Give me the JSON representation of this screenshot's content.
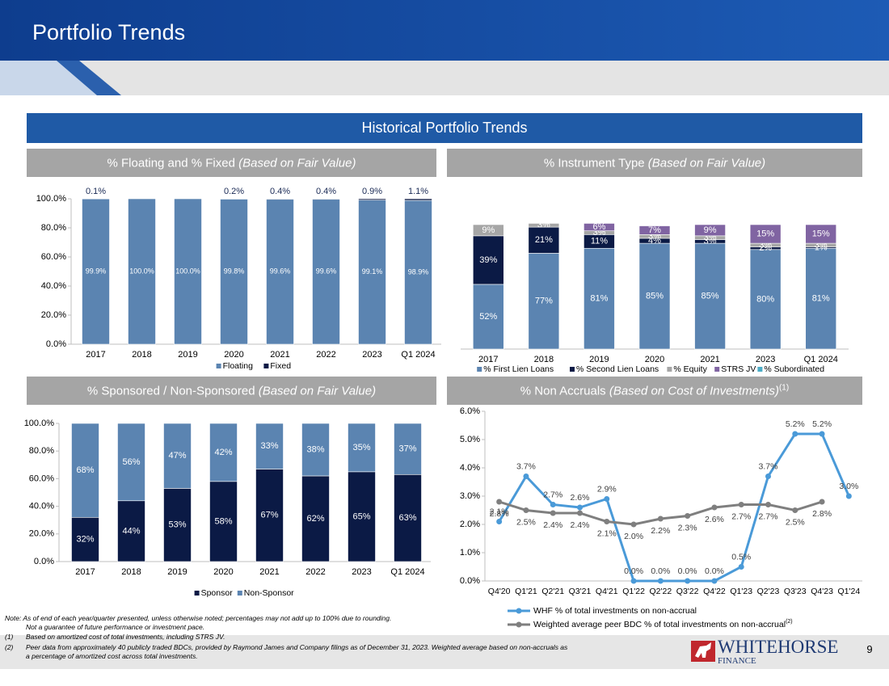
{
  "header": {
    "title": "Portfolio Trends",
    "banner": "Historical Portfolio Trends"
  },
  "chart_data": [
    {
      "type": "bar",
      "stacked": true,
      "title": "% Floating and % Fixed ",
      "title_note": "(Based on Fair Value)",
      "categories": [
        "2017",
        "2018",
        "2019",
        "2020",
        "2021",
        "2022",
        "2023",
        "Q1 2024"
      ],
      "series": [
        {
          "name": "Floating",
          "color": "#5b84b1",
          "values": [
            99.9,
            100,
            100,
            99.8,
            99.6,
            99.6,
            99.1,
            98.9
          ],
          "value_labels": [
            "99.9%",
            "100.0%",
            "100.0%",
            "99.8%",
            "99.6%",
            "99.6%",
            "99.1%",
            "98.9%"
          ]
        },
        {
          "name": "Fixed",
          "color": "#0b1a45",
          "values": [
            0.1,
            0,
            0,
            0.2,
            0.4,
            0.4,
            0.9,
            1.1
          ],
          "value_labels": [
            "0.1%",
            null,
            null,
            "0.2%",
            "0.4%",
            "0.4%",
            "0.9%",
            "1.1%"
          ]
        }
      ],
      "ylim": [
        0,
        100
      ],
      "yticks": [
        {
          "value": 0,
          "label": "0.0%"
        },
        {
          "value": 20,
          "label": "20.0%"
        },
        {
          "value": 40,
          "label": "40.0%"
        },
        {
          "value": 60,
          "label": "60.0%"
        },
        {
          "value": 80,
          "label": "80.0%"
        },
        {
          "value": 100,
          "label": "100.0%"
        }
      ],
      "legend": "bottom"
    },
    {
      "type": "bar",
      "stacked": true,
      "title": "% Instrument Type ",
      "title_note": "(Based on Fair Value)",
      "categories": [
        "2017",
        "2018",
        "2019",
        "2020",
        "2021",
        "2023",
        "Q1 2024"
      ],
      "series": [
        {
          "name": "% First Lien Loans",
          "color": "#5b84b1",
          "values": [
            52,
            77,
            81,
            85,
            85,
            80,
            81
          ],
          "value_labels": [
            "52%",
            "77%",
            "81%",
            "85%",
            "85%",
            "80%",
            "81%"
          ]
        },
        {
          "name": "% Second Lien Loans",
          "color": "#0b1a45",
          "values": [
            39,
            21,
            11,
            4,
            3,
            2,
            1
          ],
          "value_labels": [
            "39%",
            "21%",
            "11%",
            "4%",
            "3%",
            "2%",
            "1%"
          ]
        },
        {
          "name": "% Equity",
          "color": "#a6a6a6",
          "values": [
            9,
            3,
            3,
            3,
            3,
            3,
            3
          ],
          "value_labels": [
            "9%",
            "3%",
            "3%",
            "3%",
            "3%",
            "3%",
            "3%"
          ]
        },
        {
          "name": "STRS JV",
          "color": "#8064a2",
          "values": [
            0,
            0,
            6,
            7,
            9,
            15,
            15
          ],
          "value_labels": [
            null,
            null,
            "6%",
            "7%",
            "9%",
            "15%",
            "15%"
          ]
        },
        {
          "name": "% Subordinated",
          "color": "#4bacc6",
          "values": [
            0,
            0,
            0,
            0,
            0,
            0,
            0
          ],
          "value_labels": [
            null,
            null,
            null,
            null,
            null,
            null,
            null
          ]
        }
      ],
      "ylim": [
        0,
        100
      ],
      "legend": "bottom"
    },
    {
      "type": "bar",
      "stacked": true,
      "title": "% Sponsored / Non-Sponsored ",
      "title_note": "(Based on Fair Value)",
      "categories": [
        "2017",
        "2018",
        "2019",
        "2020",
        "2021",
        "2022",
        "2023",
        "Q1 2024"
      ],
      "series": [
        {
          "name": "Sponsor",
          "color": "#0b1a45",
          "values": [
            32,
            44,
            53,
            58,
            67,
            62,
            65,
            63
          ],
          "value_labels": [
            "32%",
            "44%",
            "53%",
            "58%",
            "67%",
            "62%",
            "65%",
            "63%"
          ]
        },
        {
          "name": "Non-Sponsor",
          "color": "#5b84b1",
          "values": [
            68,
            56,
            47,
            42,
            33,
            38,
            35,
            37
          ],
          "value_labels": [
            "68%",
            "56%",
            "47%",
            "42%",
            "33%",
            "38%",
            "35%",
            "37%"
          ]
        }
      ],
      "ylim": [
        0,
        100
      ],
      "yticks": [
        {
          "value": 0,
          "label": "0.0%"
        },
        {
          "value": 20,
          "label": "20.0%"
        },
        {
          "value": 40,
          "label": "40.0%"
        },
        {
          "value": 60,
          "label": "60.0%"
        },
        {
          "value": 80,
          "label": "80.0%"
        },
        {
          "value": 100,
          "label": "100.0%"
        }
      ],
      "legend": "bottom"
    },
    {
      "type": "line",
      "title": "% Non Accruals ",
      "title_note": "(Based on Cost of Investments)",
      "footnote_ref": "(1)",
      "categories": [
        "Q4'20",
        "Q1'21",
        "Q2'21",
        "Q3'21",
        "Q4'21",
        "Q1'22",
        "Q2'22",
        "Q3'22",
        "Q4'22",
        "Q1'23",
        "Q2'23",
        "Q3'23",
        "Q4'23",
        "Q1'24"
      ],
      "series": [
        {
          "name": "WHF % of total investments on non-accrual",
          "color": "#4a9ad8",
          "values": [
            2.1,
            3.7,
            2.7,
            2.6,
            2.9,
            0.0,
            0.0,
            0.0,
            0.0,
            0.5,
            3.7,
            5.2,
            5.2,
            3.0
          ],
          "value_labels": [
            "2.1%",
            "3.7%",
            "2.7%",
            "2.6%",
            "2.9%",
            "0.0%",
            "0.0%",
            "0.0%",
            "0.0%",
            "0.5%",
            "3.7%",
            "5.2%",
            "5.2%",
            "3.0%"
          ]
        },
        {
          "name": "Weighted average peer  BDC % of total investments on non-accrual",
          "footnote_ref": "(2)",
          "color": "#7f7f7f",
          "values": [
            2.8,
            2.5,
            2.4,
            2.4,
            2.1,
            2.0,
            2.2,
            2.3,
            2.6,
            2.7,
            2.7,
            2.5,
            2.8,
            null
          ],
          "value_labels": [
            "2.8%",
            "2.5%",
            "2.4%",
            "2.4%",
            "2.1%",
            "2.0%",
            "2.2%",
            "2.3%",
            "2.6%",
            "2.7%",
            "2.7%",
            "2.5%",
            "2.8%",
            null
          ]
        }
      ],
      "ylim": [
        0,
        6
      ],
      "yticks": [
        {
          "value": 0,
          "label": "0.0%"
        },
        {
          "value": 1,
          "label": "1.0%"
        },
        {
          "value": 2,
          "label": "2.0%"
        },
        {
          "value": 3,
          "label": "3.0%"
        },
        {
          "value": 4,
          "label": "4.0%"
        },
        {
          "value": 5,
          "label": "5.0%"
        },
        {
          "value": 6,
          "label": "6.0%"
        }
      ],
      "legend": "bottom"
    }
  ],
  "notes": {
    "note": "Note: As of end of each year/quarter presented, unless otherwise noted; percentages may not add up to 100% due to rounding.",
    "note_2": "Not a guarantee of future performance or investment pace.",
    "footnotes": [
      {
        "marker": "(1)",
        "text": "Based on amortized cost of total investments, including STRS JV."
      },
      {
        "marker": "(2)",
        "text": "Peer data from approximately 40 publicly traded BDCs, provided by Raymond James and Company filings as of December 31, 2023. Weighted average based on non-accruals as",
        "text_2": "a percentage of amortized cost across total investments."
      }
    ]
  },
  "logo": {
    "name": "WHITEHORSE",
    "sub": "FINANCE"
  },
  "page_number": 9
}
